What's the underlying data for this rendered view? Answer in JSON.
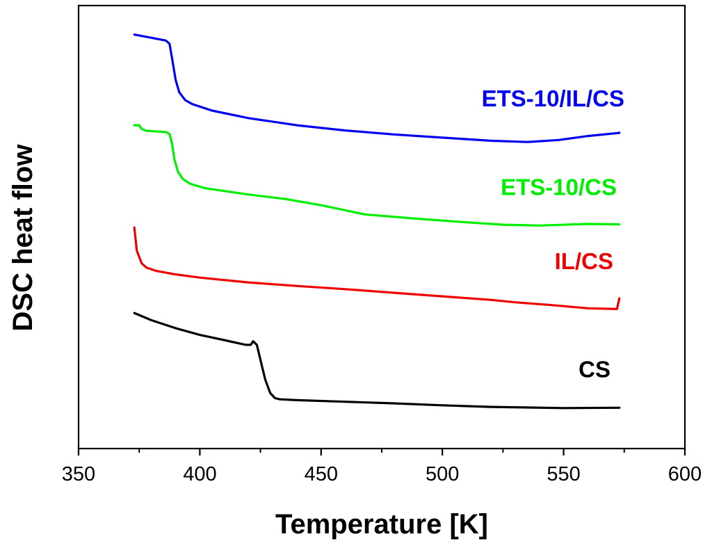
{
  "chart_data": {
    "type": "line",
    "title": "",
    "xlabel": "Temperature [K]",
    "ylabel": "DSC heat flow",
    "xlim": [
      350,
      600
    ],
    "ylim": [
      0,
      100
    ],
    "xticks": [
      350,
      400,
      450,
      500,
      550,
      600
    ],
    "xtick_labels": [
      "350",
      "400",
      "450",
      "500",
      "550",
      "600"
    ],
    "yticks_shown": false,
    "grid": false,
    "legend": "none (series labelled inline)",
    "series": [
      {
        "name": "ETS-10/IL/CS",
        "color": "#0000ee",
        "label_position": "above series, right side",
        "points": [
          [
            373,
            98.3
          ],
          [
            380,
            97.5
          ],
          [
            386,
            96.8
          ],
          [
            387.5,
            96.0
          ],
          [
            388.5,
            92.5
          ],
          [
            390,
            87.0
          ],
          [
            391.5,
            83.8
          ],
          [
            394,
            81.8
          ],
          [
            397,
            80.8
          ],
          [
            405,
            79.2
          ],
          [
            420,
            77.3
          ],
          [
            440,
            75.5
          ],
          [
            460,
            74.2
          ],
          [
            480,
            73.2
          ],
          [
            500,
            72.4
          ],
          [
            520,
            71.6
          ],
          [
            535,
            71.3
          ],
          [
            548,
            71.8
          ],
          [
            560,
            72.8
          ],
          [
            573,
            73.6
          ]
        ]
      },
      {
        "name": "ETS-10/CS",
        "color": "#00ee00",
        "label_position": "above series, right side",
        "points": [
          [
            373,
            75.5
          ],
          [
            375,
            75.5
          ],
          [
            376,
            74.6
          ],
          [
            378,
            74.1
          ],
          [
            386,
            73.8
          ],
          [
            387.5,
            73.3
          ],
          [
            388.5,
            71.0
          ],
          [
            389.5,
            67.0
          ],
          [
            391,
            63.8
          ],
          [
            393,
            62.0
          ],
          [
            396,
            60.8
          ],
          [
            402,
            59.7
          ],
          [
            420,
            58.1
          ],
          [
            435,
            57.0
          ],
          [
            450,
            55.4
          ],
          [
            468,
            53.1
          ],
          [
            490,
            52.0
          ],
          [
            510,
            51.1
          ],
          [
            525,
            50.5
          ],
          [
            540,
            50.3
          ],
          [
            560,
            50.7
          ],
          [
            573,
            50.6
          ]
        ]
      },
      {
        "name": "IL/CS",
        "color": "#ee0000",
        "label_position": "above series, right side",
        "points": [
          [
            373,
            49.8
          ],
          [
            374,
            44.0
          ],
          [
            376,
            40.8
          ],
          [
            378,
            39.7
          ],
          [
            382,
            38.9
          ],
          [
            390,
            38.0
          ],
          [
            400,
            37.2
          ],
          [
            420,
            36.0
          ],
          [
            440,
            35.1
          ],
          [
            460,
            34.3
          ],
          [
            480,
            33.4
          ],
          [
            500,
            32.5
          ],
          [
            520,
            31.6
          ],
          [
            530,
            31.0
          ],
          [
            545,
            30.3
          ],
          [
            560,
            29.5
          ],
          [
            572,
            29.3
          ],
          [
            573,
            32.0
          ]
        ]
      },
      {
        "name": "CS",
        "color": "#000000",
        "label_position": "above series, right side",
        "points": [
          [
            373,
            28.3
          ],
          [
            380,
            26.5
          ],
          [
            390,
            24.5
          ],
          [
            400,
            22.8
          ],
          [
            410,
            21.5
          ],
          [
            419,
            20.3
          ],
          [
            421,
            20.3
          ],
          [
            422,
            21.2
          ],
          [
            423.5,
            20.3
          ],
          [
            425,
            16.5
          ],
          [
            427,
            11.5
          ],
          [
            429,
            8.2
          ],
          [
            431,
            6.9
          ],
          [
            433,
            6.6
          ],
          [
            440,
            6.4
          ],
          [
            460,
            6.0
          ],
          [
            480,
            5.6
          ],
          [
            500,
            5.1
          ],
          [
            520,
            4.7
          ],
          [
            550,
            4.4
          ],
          [
            573,
            4.5
          ]
        ]
      }
    ]
  }
}
